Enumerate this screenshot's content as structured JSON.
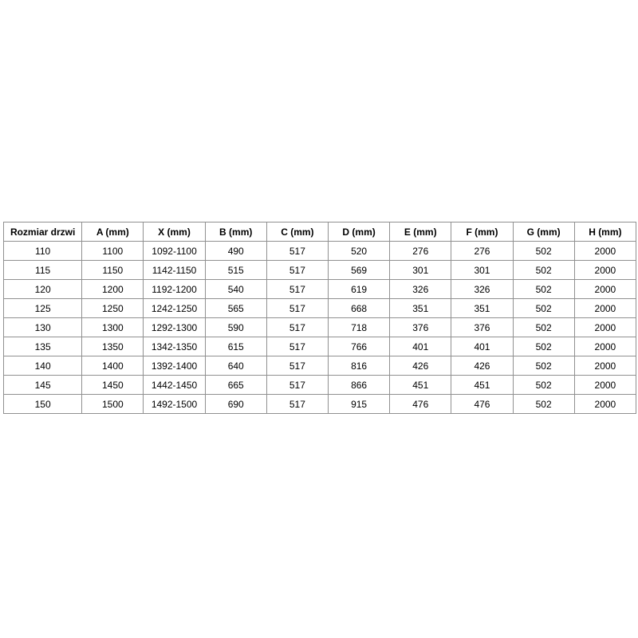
{
  "table": {
    "name": "door-sizes-spec-table",
    "columns": [
      "Rozmiar drzwi",
      "A (mm)",
      "X (mm)",
      "B (mm)",
      "C (mm)",
      "D (mm)",
      "E (mm)",
      "F (mm)",
      "G (mm)",
      "H (mm)"
    ],
    "rows": [
      [
        "110",
        "1100",
        "1092-1100",
        "490",
        "517",
        "520",
        "276",
        "276",
        "502",
        "2000"
      ],
      [
        "115",
        "1150",
        "1142-1150",
        "515",
        "517",
        "569",
        "301",
        "301",
        "502",
        "2000"
      ],
      [
        "120",
        "1200",
        "1192-1200",
        "540",
        "517",
        "619",
        "326",
        "326",
        "502",
        "2000"
      ],
      [
        "125",
        "1250",
        "1242-1250",
        "565",
        "517",
        "668",
        "351",
        "351",
        "502",
        "2000"
      ],
      [
        "130",
        "1300",
        "1292-1300",
        "590",
        "517",
        "718",
        "376",
        "376",
        "502",
        "2000"
      ],
      [
        "135",
        "1350",
        "1342-1350",
        "615",
        "517",
        "766",
        "401",
        "401",
        "502",
        "2000"
      ],
      [
        "140",
        "1400",
        "1392-1400",
        "640",
        "517",
        "816",
        "426",
        "426",
        "502",
        "2000"
      ],
      [
        "145",
        "1450",
        "1442-1450",
        "665",
        "517",
        "866",
        "451",
        "451",
        "502",
        "2000"
      ],
      [
        "150",
        "1500",
        "1492-1500",
        "690",
        "517",
        "915",
        "476",
        "476",
        "502",
        "2000"
      ]
    ],
    "colors": {
      "border": "#909090",
      "text": "#000000",
      "background": "#ffffff"
    }
  }
}
